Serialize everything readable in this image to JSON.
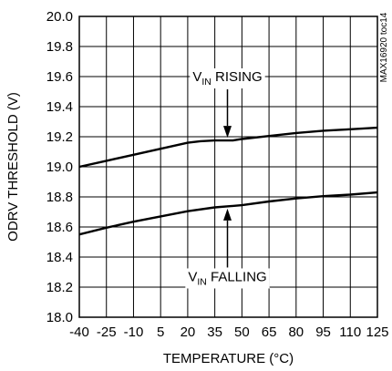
{
  "chart_data": {
    "type": "line",
    "xlabel": "TEMPERATURE (°C)",
    "ylabel": "ODRV THRESHOLD (V)",
    "xlim": [
      -40,
      125
    ],
    "ylim": [
      18.0,
      20.0
    ],
    "grid": true,
    "xticks": [
      -40,
      -25,
      -10,
      5,
      20,
      35,
      50,
      65,
      80,
      95,
      110,
      125
    ],
    "xtick_labels": [
      "-40",
      "-25",
      "-10",
      "5",
      "20",
      "35",
      "50",
      "65",
      "80",
      "95",
      "110",
      "125"
    ],
    "yticks": [
      18.0,
      18.2,
      18.4,
      18.6,
      18.8,
      19.0,
      19.2,
      19.4,
      19.6,
      19.8,
      20.0
    ],
    "ytick_labels": [
      "18.0",
      "18.2",
      "18.4",
      "18.6",
      "18.8",
      "19.0",
      "19.2",
      "19.4",
      "19.6",
      "19.8",
      "20.0"
    ],
    "series": [
      {
        "name": "VIN RISING",
        "x": [
          -40,
          -25,
          -10,
          5,
          20,
          27,
          35,
          45,
          50,
          65,
          80,
          95,
          110,
          125
        ],
        "y": [
          19.0,
          19.04,
          19.08,
          19.12,
          19.16,
          19.17,
          19.175,
          19.175,
          19.185,
          19.205,
          19.225,
          19.24,
          19.25,
          19.26
        ]
      },
      {
        "name": "VIN FALLING",
        "x": [
          -40,
          -25,
          -10,
          5,
          20,
          35,
          50,
          65,
          80,
          95,
          110,
          125
        ],
        "y": [
          18.55,
          18.595,
          18.635,
          18.67,
          18.705,
          18.73,
          18.745,
          18.77,
          18.79,
          18.805,
          18.815,
          18.83
        ]
      }
    ],
    "annotations": [
      {
        "main": "V",
        "sub": "IN",
        "rest": " RISING",
        "x": 42,
        "y": 19.6,
        "arrow_to": [
          42,
          19.175
        ]
      },
      {
        "main": "V",
        "sub": "IN",
        "rest": " FALLING",
        "x": 42,
        "y": 18.27,
        "arrow_to": [
          42,
          18.74
        ]
      }
    ],
    "code_label": "MAX16920 toc14"
  }
}
